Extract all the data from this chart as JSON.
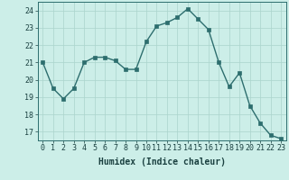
{
  "x": [
    0,
    1,
    2,
    3,
    4,
    5,
    6,
    7,
    8,
    9,
    10,
    11,
    12,
    13,
    14,
    15,
    16,
    17,
    18,
    19,
    20,
    21,
    22,
    23
  ],
  "y": [
    21.0,
    19.5,
    18.9,
    19.5,
    21.0,
    21.3,
    21.3,
    21.1,
    20.6,
    20.6,
    22.2,
    23.1,
    23.3,
    23.6,
    24.1,
    23.5,
    22.9,
    21.0,
    19.6,
    20.4,
    18.5,
    17.5,
    16.8,
    16.6
  ],
  "xlabel": "Humidex (Indice chaleur)",
  "xlim": [
    -0.5,
    23.5
  ],
  "ylim": [
    16.5,
    24.5
  ],
  "yticks": [
    17,
    18,
    19,
    20,
    21,
    22,
    23,
    24
  ],
  "xticks": [
    0,
    1,
    2,
    3,
    4,
    5,
    6,
    7,
    8,
    9,
    10,
    11,
    12,
    13,
    14,
    15,
    16,
    17,
    18,
    19,
    20,
    21,
    22,
    23
  ],
  "bg_color": "#cceee8",
  "line_color": "#2d6e6e",
  "grid_color": "#aad4cc",
  "markersize": 2.5,
  "linewidth": 1.0,
  "label_fontsize": 7,
  "tick_fontsize": 6
}
